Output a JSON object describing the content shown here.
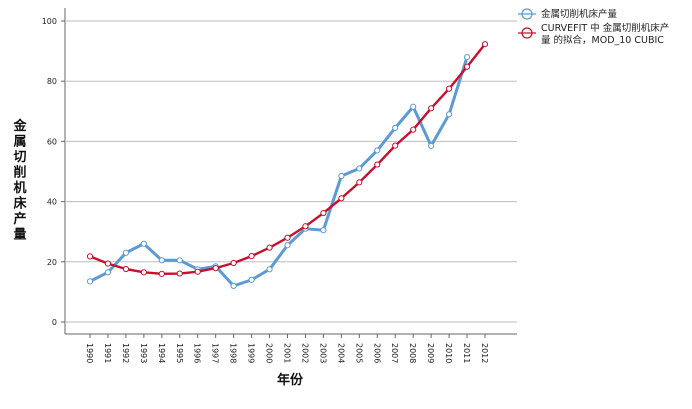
{
  "chart_data": {
    "type": "line",
    "xlabel": "年份",
    "ylabel": "金属切削机床产量",
    "ylim": [
      0,
      105
    ],
    "yticks": [
      0,
      20,
      40,
      60,
      80,
      100
    ],
    "grid": "horizontal",
    "legend_position": "top-right",
    "categories": [
      "1990",
      "1991",
      "1992",
      "1993",
      "1994",
      "1995",
      "1996",
      "1997",
      "1998",
      "1999",
      "2000",
      "2001",
      "2002",
      "2003",
      "2004",
      "2005",
      "2006",
      "2007",
      "2008",
      "2009",
      "2010",
      "2011",
      "2012"
    ],
    "series": [
      {
        "name": "金属切削机床产量",
        "color": "#5b9bd5",
        "marker": "circle-open",
        "values": [
          13.5,
          16.5,
          23,
          26,
          20.5,
          20.5,
          17.5,
          18.5,
          12,
          14,
          17.5,
          25.5,
          31,
          30.5,
          48.5,
          51,
          57,
          64.5,
          71.5,
          58.5,
          69,
          88,
          null
        ]
      },
      {
        "name": "CURVEFIT 中 金属切削机床产 量 的拟合，MOD_10 CUBIC",
        "legend_lines": [
          "CURVEFIT 中 金属切削机床产",
          "量 的拟合，MOD_10 CUBIC"
        ],
        "color": "#c8102e",
        "marker": "circle-open",
        "values": [
          21.8,
          19.4,
          17.6,
          16.5,
          16.0,
          16.1,
          16.7,
          17.9,
          19.6,
          21.9,
          24.7,
          28.0,
          31.8,
          36.2,
          41.1,
          46.4,
          52.3,
          58.6,
          63.9,
          71.0,
          77.5,
          84.8,
          92.3
        ]
      }
    ]
  }
}
